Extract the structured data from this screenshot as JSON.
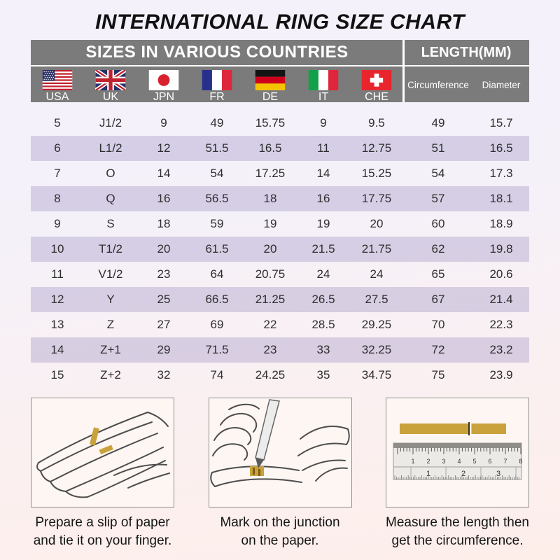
{
  "chart_data": {
    "type": "table",
    "title": "INTERNATIONAL RING SIZE CHART",
    "group_headers": [
      {
        "label": "SIZES IN VARIOUS COUNTRIES",
        "span": 7
      },
      {
        "label": "LENGTH(MM)",
        "span": 2
      }
    ],
    "country_columns": [
      {
        "code": "USA",
        "flag": "usa"
      },
      {
        "code": "UK",
        "flag": "uk"
      },
      {
        "code": "JPN",
        "flag": "jpn"
      },
      {
        "code": "FR",
        "flag": "fr"
      },
      {
        "code": "DE",
        "flag": "de"
      },
      {
        "code": "IT",
        "flag": "it"
      },
      {
        "code": "CHE",
        "flag": "che"
      }
    ],
    "length_columns": [
      "Circumference",
      "Diameter"
    ],
    "rows": [
      [
        "5",
        "J1/2",
        "9",
        "49",
        "15.75",
        "9",
        "9.5",
        "49",
        "15.7"
      ],
      [
        "6",
        "L1/2",
        "12",
        "51.5",
        "16.5",
        "11",
        "12.75",
        "51",
        "16.5"
      ],
      [
        "7",
        "O",
        "14",
        "54",
        "17.25",
        "14",
        "15.25",
        "54",
        "17.3"
      ],
      [
        "8",
        "Q",
        "16",
        "56.5",
        "18",
        "16",
        "17.75",
        "57",
        "18.1"
      ],
      [
        "9",
        "S",
        "18",
        "59",
        "19",
        "19",
        "20",
        "60",
        "18.9"
      ],
      [
        "10",
        "T1/2",
        "20",
        "61.5",
        "20",
        "21.5",
        "21.75",
        "62",
        "19.8"
      ],
      [
        "11",
        "V1/2",
        "23",
        "64",
        "20.75",
        "24",
        "24",
        "65",
        "20.6"
      ],
      [
        "12",
        "Y",
        "25",
        "66.5",
        "21.25",
        "26.5",
        "27.5",
        "67",
        "21.4"
      ],
      [
        "13",
        "Z",
        "27",
        "69",
        "22",
        "28.5",
        "29.25",
        "70",
        "22.3"
      ],
      [
        "14",
        "Z+1",
        "29",
        "71.5",
        "23",
        "33",
        "32.25",
        "72",
        "23.2"
      ],
      [
        "15",
        "Z+2",
        "32",
        "74",
        "24.25",
        "35",
        "34.75",
        "75",
        "23.9"
      ]
    ]
  },
  "steps": [
    {
      "illustration": "hand-with-paper",
      "caption": [
        "Prepare a slip of paper",
        "and tie it on your finger."
      ]
    },
    {
      "illustration": "mark-junction",
      "caption": [
        "Mark on the junction",
        "on the paper."
      ]
    },
    {
      "illustration": "ruler-measure",
      "caption": [
        "Measure the length then",
        "get the circumference."
      ],
      "ruler": {
        "cm_numbers": [
          "1",
          "2",
          "3",
          "4",
          "5",
          "6",
          "7",
          "8"
        ],
        "inch_numbers": [
          "1",
          "2",
          "3"
        ]
      }
    }
  ],
  "colors": {
    "header_bg": "#7b7b7b",
    "header_text": "#ffffff",
    "row_alt": "rgba(157,144,194,0.36)",
    "bg_top": "#f4f1fb",
    "bg_bottom": "#fdeeea",
    "paper_strip": "#c9a23c",
    "text": "#2d2d2d"
  }
}
